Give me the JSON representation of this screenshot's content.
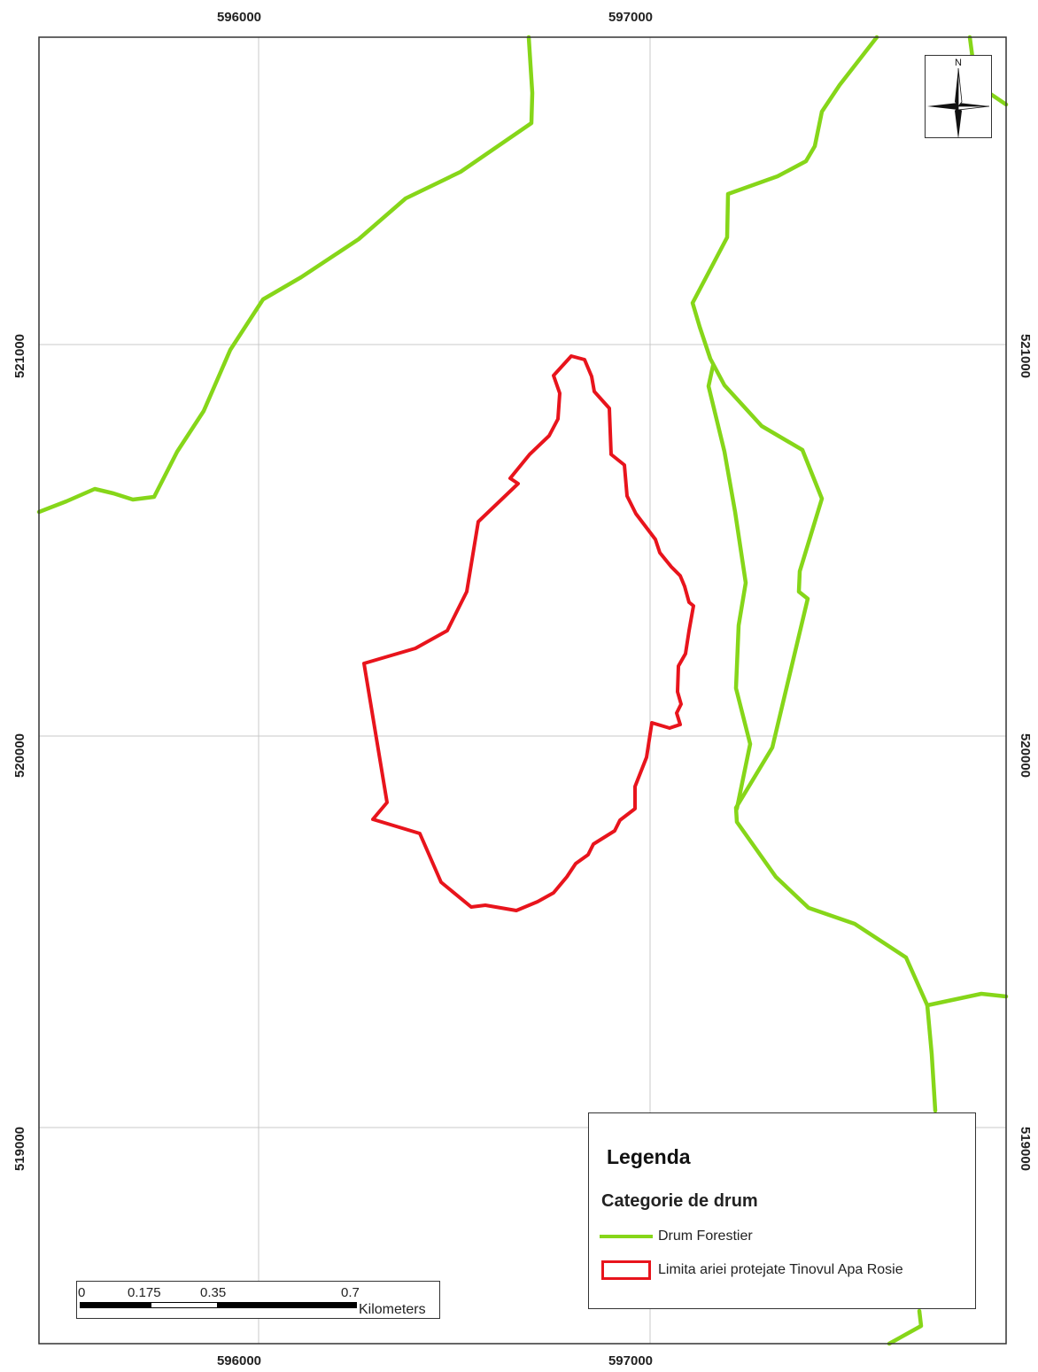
{
  "map": {
    "colors": {
      "road": "#86d619",
      "boundary": "#e8141c",
      "grid": "#c8c8c8",
      "frame": "#333333"
    },
    "x_ticks": [
      "596000",
      "597000"
    ],
    "y_ticks": [
      "521000",
      "520000",
      "519000"
    ]
  },
  "north_arrow": {
    "label": "N",
    "icon": "north-arrow-icon"
  },
  "legend": {
    "title": "Legenda",
    "subtitle": "Categorie de drum",
    "items": [
      {
        "label": "Drum Forestier",
        "symbol": "line",
        "color": "#86d619"
      },
      {
        "label": "Limita ariei protejate Tinovul Apa Rosie",
        "symbol": "polygon-outline",
        "color": "#e8141c"
      }
    ]
  },
  "scale_bar": {
    "labels": [
      "0",
      "0.175",
      "0.35",
      "0.7"
    ],
    "units": "Kilometers"
  }
}
